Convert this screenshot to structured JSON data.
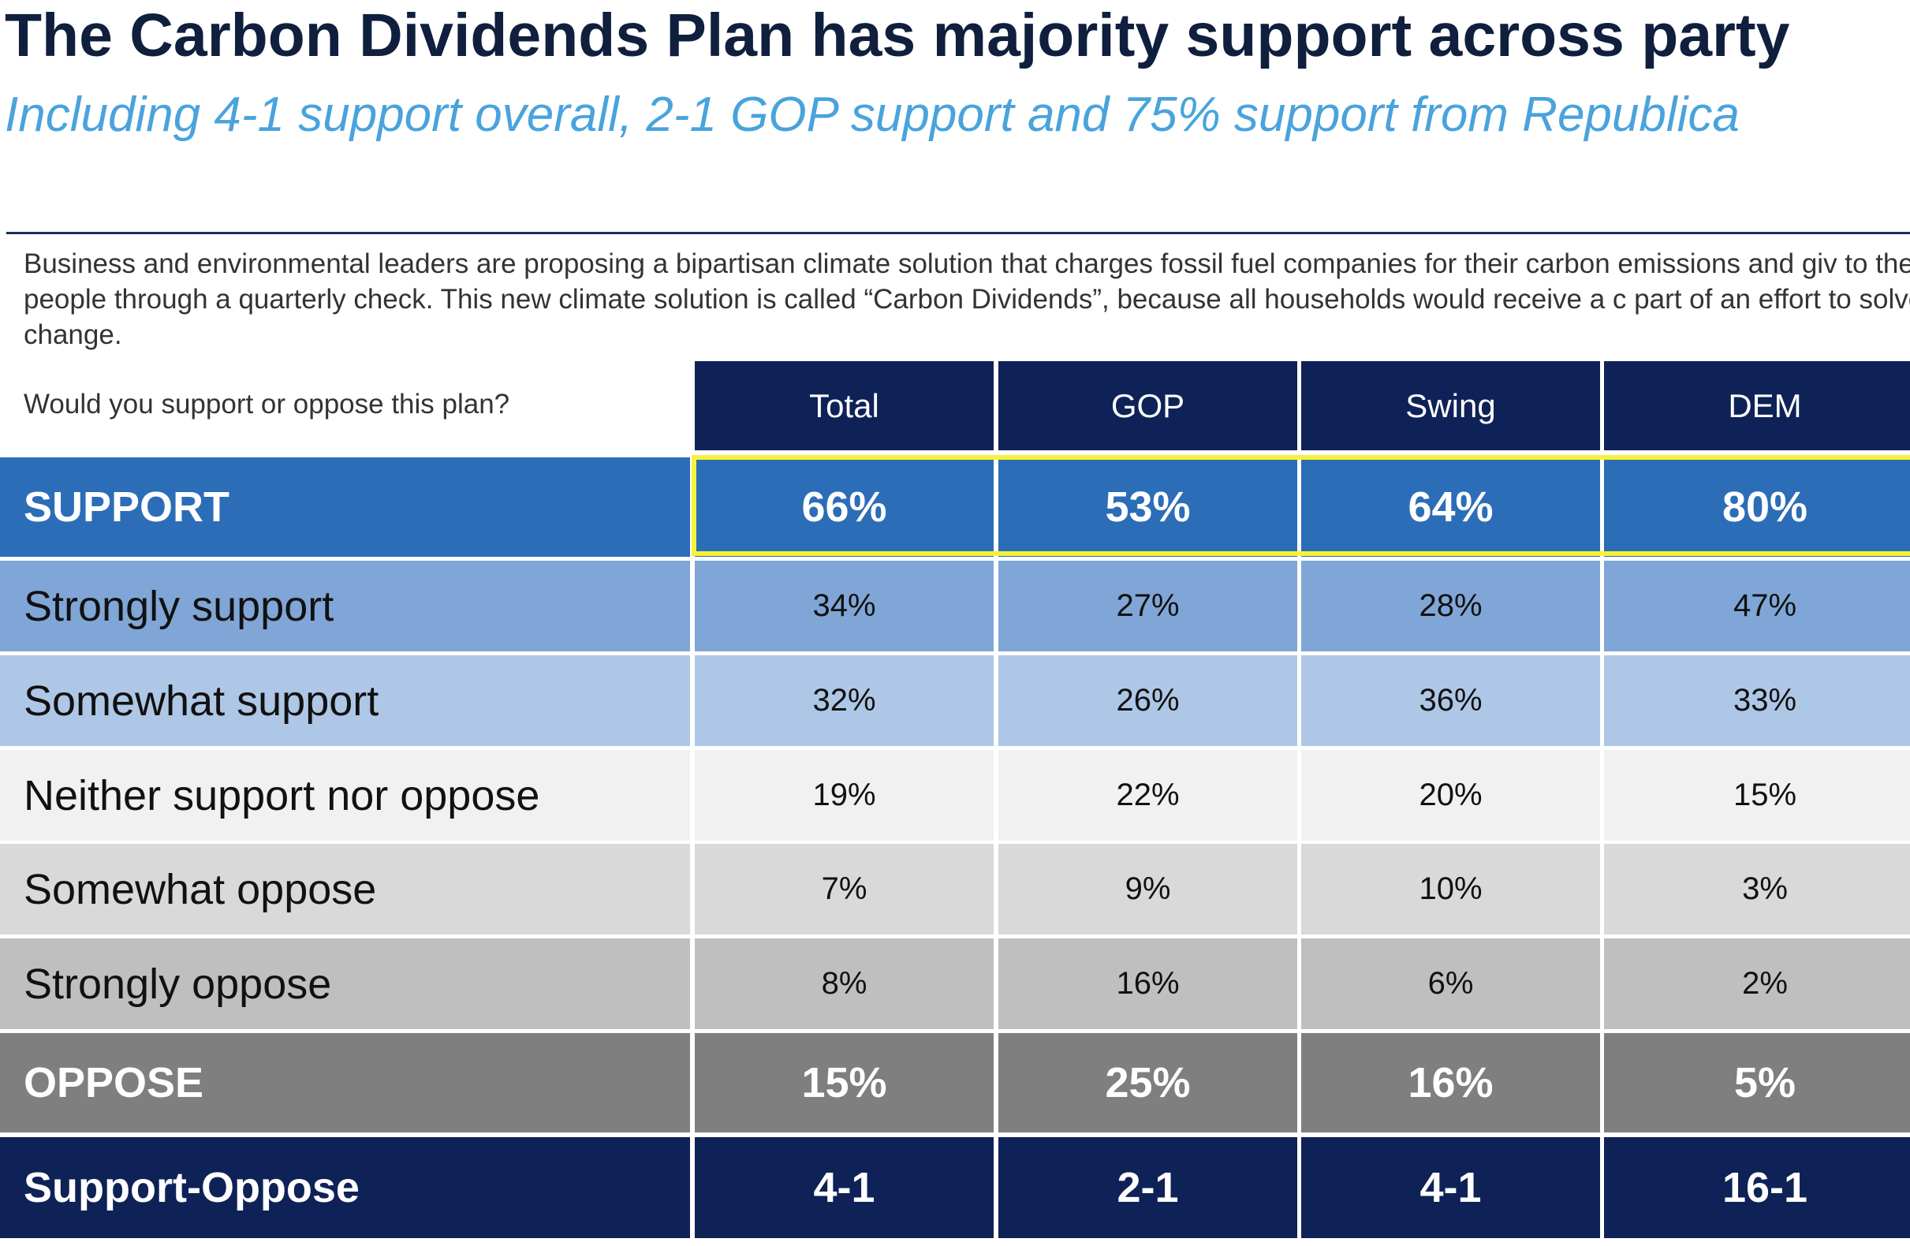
{
  "title": "The Carbon Dividends Plan has majority support across party",
  "subtitle": "Including 4-1 support overall, 2-1 GOP support and 75% support from Republica",
  "question_text": "Business and environmental leaders are proposing a bipartisan climate solution that charges fossil fuel companies for their carbon emissions and giv to the American people through a quarterly check. This new climate solution is called “Carbon Dividends”, because all households would receive a c part of an effort to solve climate change.",
  "prompt": "Would you support or oppose this plan?",
  "colors": {
    "header_bg": "#0e2257",
    "support_bg": "#2c6db8",
    "strongly_support_bg": "#7fa6d6",
    "somewhat_support_bg": "#aec7e6",
    "neither_bg": "#f1f1f1",
    "somewhat_oppose_bg": "#d9d9d9",
    "strongly_oppose_bg": "#bfbfbf",
    "oppose_bg": "#7f7f7f",
    "net_bg": "#0e2257",
    "highlight": "#f7f13a"
  },
  "chart_data": {
    "type": "table",
    "columns": [
      "Total",
      "GOP",
      "Swing",
      "DEM"
    ],
    "rows": [
      {
        "label": "SUPPORT",
        "values": [
          "66%",
          "53%",
          "64%",
          "80%"
        ],
        "style": "bold",
        "color_key": "support_bg",
        "highlighted": true
      },
      {
        "label": "Strongly support",
        "values": [
          "34%",
          "27%",
          "28%",
          "47%"
        ],
        "style": "plain",
        "color_key": "strongly_support_bg"
      },
      {
        "label": "Somewhat support",
        "values": [
          "32%",
          "26%",
          "36%",
          "33%"
        ],
        "style": "plain",
        "color_key": "somewhat_support_bg"
      },
      {
        "label": "Neither support nor oppose",
        "values": [
          "19%",
          "22%",
          "20%",
          "15%"
        ],
        "style": "plain",
        "color_key": "neither_bg"
      },
      {
        "label": "Somewhat oppose",
        "values": [
          "7%",
          "9%",
          "10%",
          "3%"
        ],
        "style": "plain",
        "color_key": "somewhat_oppose_bg"
      },
      {
        "label": "Strongly oppose",
        "values": [
          "8%",
          "16%",
          "6%",
          "2%"
        ],
        "style": "plain",
        "color_key": "strongly_oppose_bg"
      },
      {
        "label": "OPPOSE",
        "values": [
          "15%",
          "25%",
          "16%",
          "5%"
        ],
        "style": "bold",
        "color_key": "oppose_bg"
      },
      {
        "label": "Support-Oppose",
        "values": [
          "4-1",
          "2-1",
          "4-1",
          "16-1"
        ],
        "style": "bold",
        "color_key": "net_bg"
      }
    ]
  }
}
